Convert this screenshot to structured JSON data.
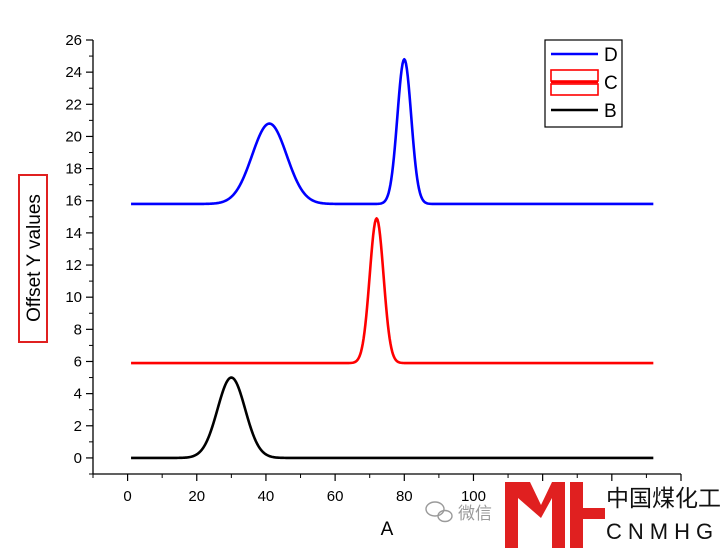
{
  "chart_data": {
    "type": "line",
    "title": "",
    "xlabel": "A",
    "ylabel": "Offset Y values",
    "xlim": [
      -10,
      160
    ],
    "ylim": [
      -1,
      26
    ],
    "x_ticks": [
      0,
      20,
      40,
      60,
      80,
      100
    ],
    "y_ticks": [
      0,
      2,
      4,
      6,
      8,
      10,
      12,
      14,
      16,
      18,
      20,
      22,
      24,
      26
    ],
    "x_domain": [
      1,
      152
    ],
    "grid": false,
    "legend_position": "top-right",
    "series": [
      {
        "name": "D",
        "color": "#0000ff",
        "baseline": 15.8,
        "peaks": [
          {
            "center": 41,
            "height": 5.0,
            "sigma": 5.0
          },
          {
            "center": 80,
            "height": 9.0,
            "sigma": 2.0
          }
        ]
      },
      {
        "name": "C",
        "color": "#ff0000",
        "baseline": 5.9,
        "peaks": [
          {
            "center": 72,
            "height": 9.0,
            "sigma": 2.0
          }
        ]
      },
      {
        "name": "B",
        "color": "#000000",
        "baseline": 0,
        "peaks": [
          {
            "center": 30,
            "height": 5.0,
            "sigma": 4.0
          }
        ]
      }
    ]
  },
  "watermark": {
    "text": "微信",
    "icon": "wechat-icon"
  },
  "logo": {
    "mark": "YH",
    "cn": "中国煤化工",
    "en": "CNMHG",
    "color": "#e02020"
  }
}
